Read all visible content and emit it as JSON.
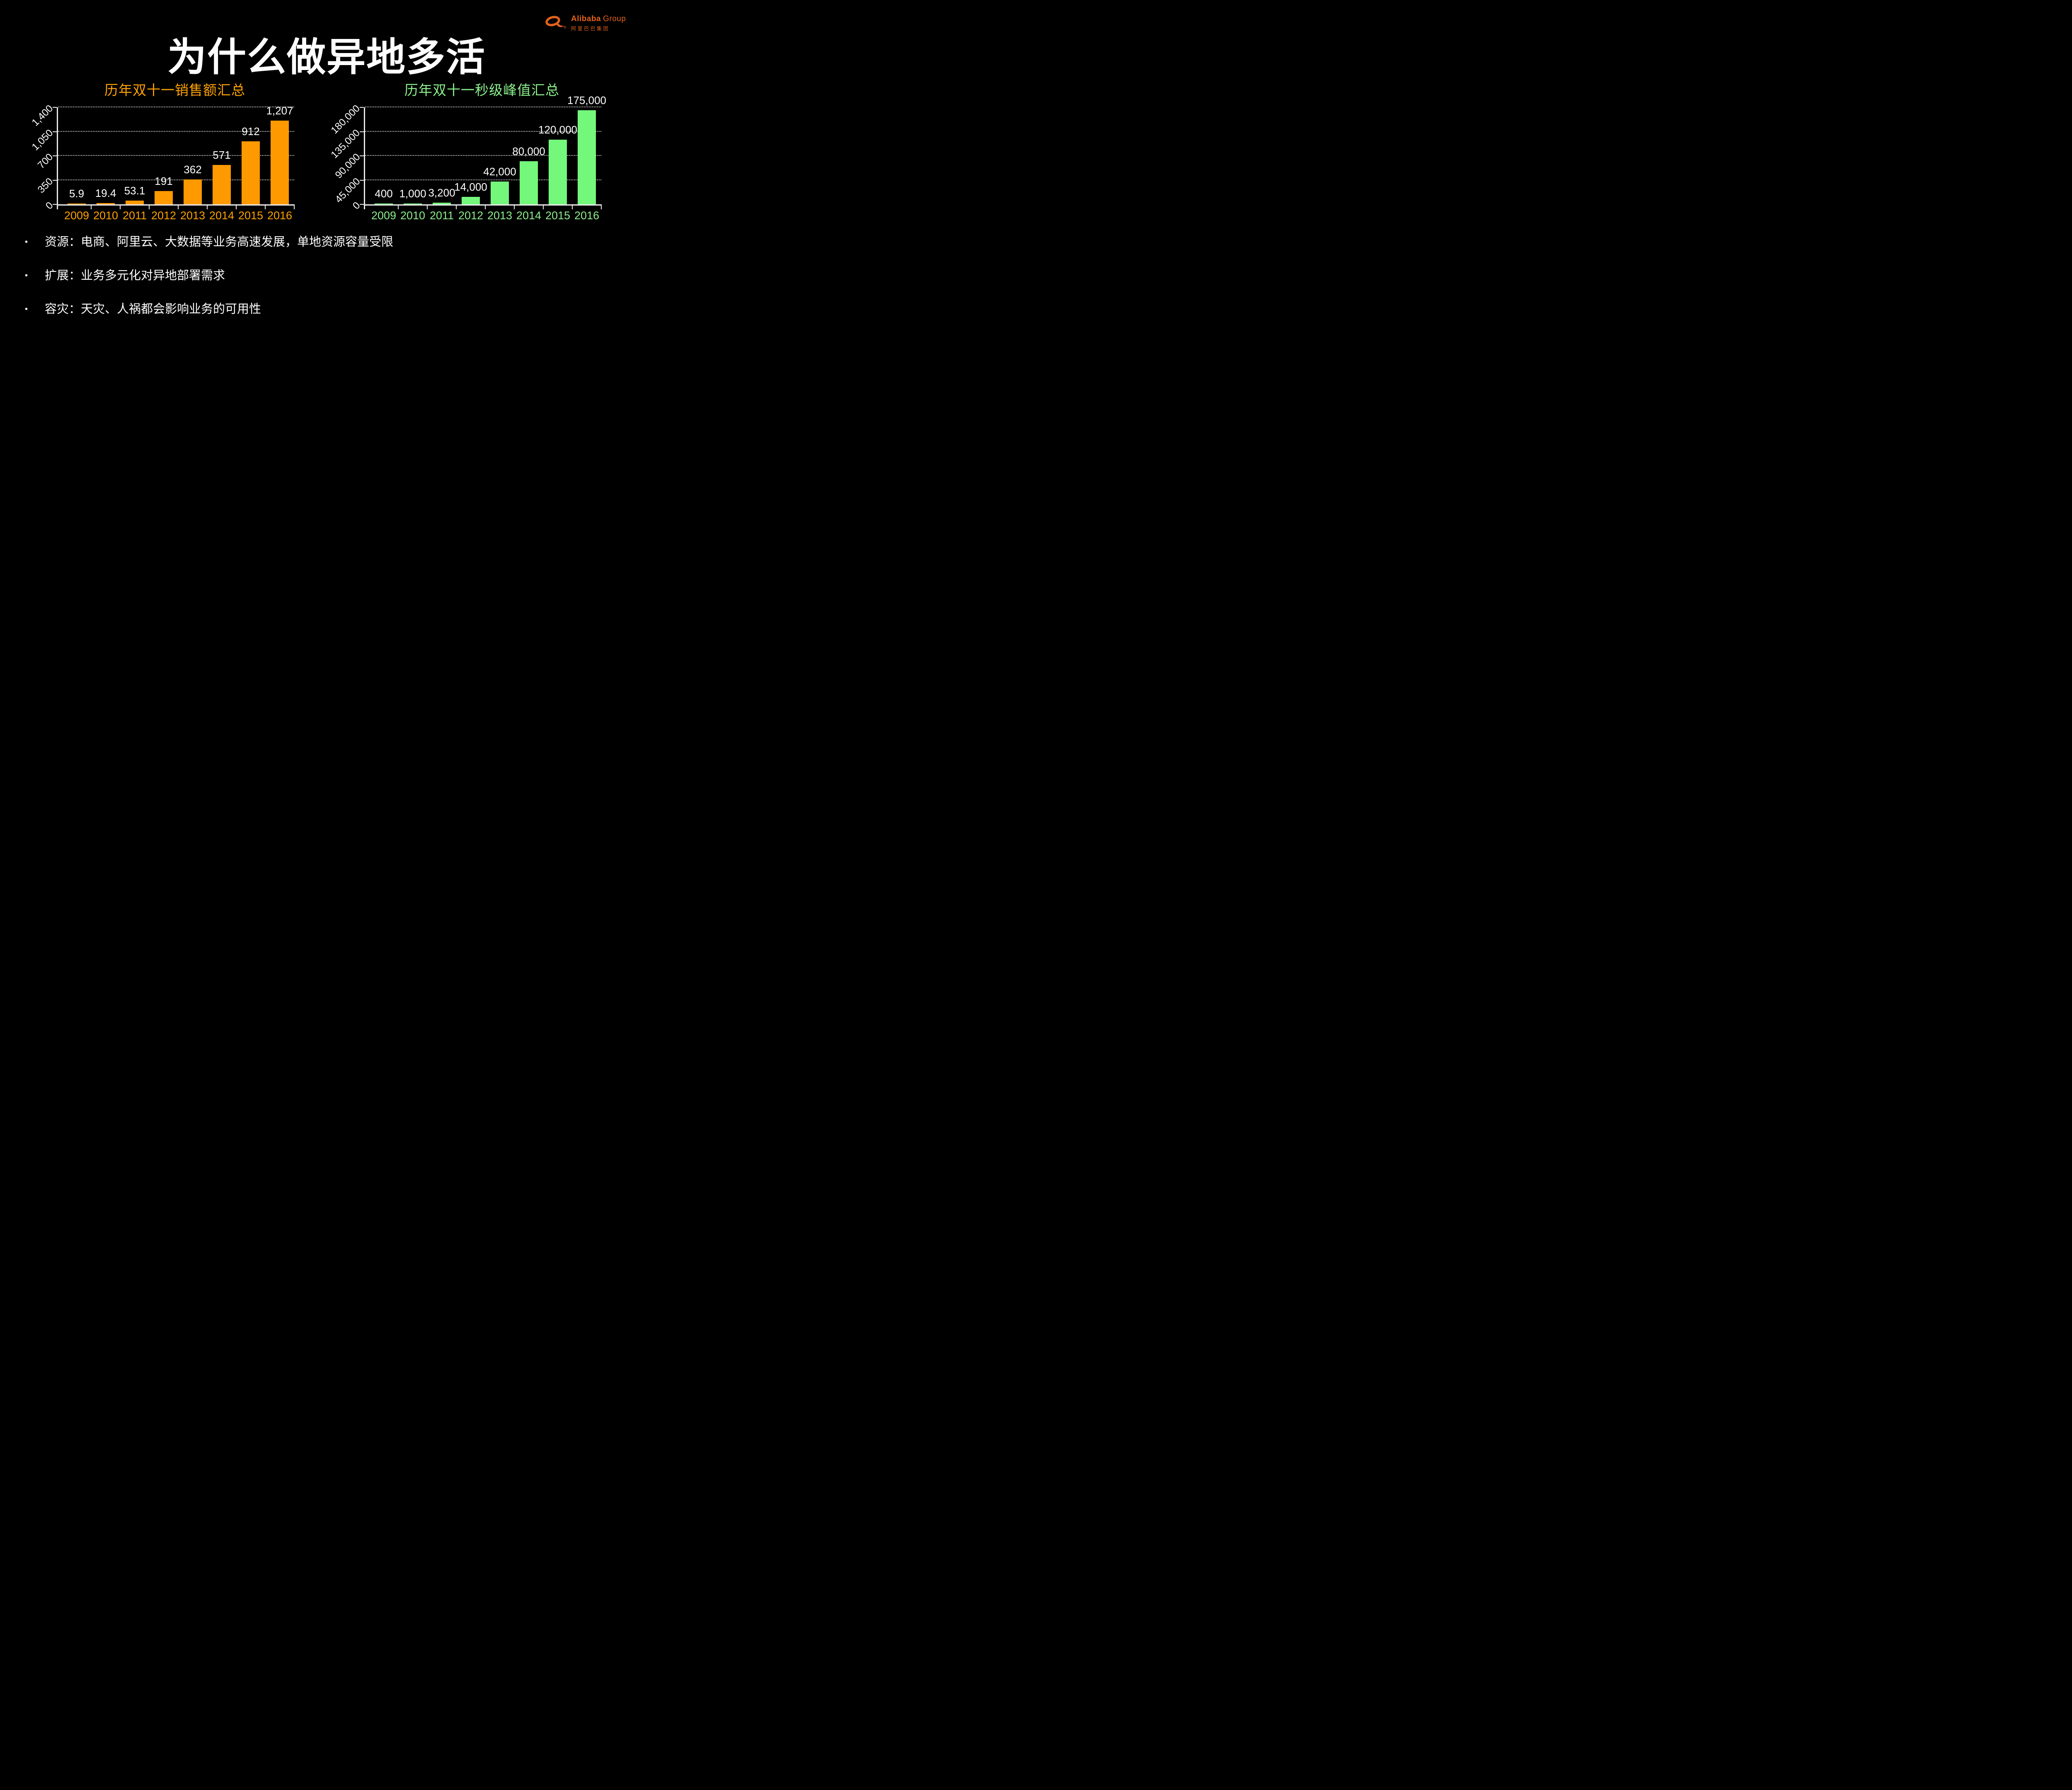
{
  "slide": {
    "title": "为什么做异地多活",
    "logo": {
      "brand": "Alibaba",
      "suffix": "Group",
      "chinese": "阿里巴巴集团",
      "registered": "®",
      "color": "#E2621C"
    },
    "bullets": [
      "资源：电商、阿里云、大数据等业务高速发展，单地资源容量受限",
      "扩展：业务多元化对异地部署需求",
      "容灾：天灾、人祸都会影响业务的可用性"
    ]
  },
  "chart_data": [
    {
      "type": "bar",
      "title": "历年双十一销售额汇总",
      "categories": [
        "2009",
        "2010",
        "2011",
        "2012",
        "2013",
        "2014",
        "2015",
        "2016"
      ],
      "values": [
        5.9,
        19.4,
        53.1,
        191,
        362,
        571,
        912,
        1207
      ],
      "value_labels": [
        "5.9",
        "19.4",
        "53.1",
        "191",
        "362",
        "571",
        "912",
        "1,207"
      ],
      "xlabel": "",
      "ylabel": "",
      "ylim": [
        0,
        1400
      ],
      "yticks": [
        0,
        350,
        700,
        1050,
        1400
      ],
      "ytick_labels": [
        "0",
        "350",
        "700",
        "1,050",
        "1,400"
      ],
      "ytick_rotation": -45,
      "grid": true,
      "legend": "none",
      "bar_color": "#FF9900",
      "text_color": "#FFA200"
    },
    {
      "type": "bar",
      "title": "历年双十一秒级峰值汇总",
      "categories": [
        "2009",
        "2010",
        "2011",
        "2012",
        "2013",
        "2014",
        "2015",
        "2016"
      ],
      "values": [
        400,
        1000,
        3200,
        14000,
        42000,
        80000,
        120000,
        175000
      ],
      "value_labels": [
        "400",
        "1,000",
        "3,200",
        "14,000",
        "42,000",
        "80,000",
        "120,000",
        "175,000"
      ],
      "xlabel": "",
      "ylabel": "",
      "ylim": [
        0,
        180000
      ],
      "yticks": [
        0,
        45000,
        90000,
        135000,
        180000
      ],
      "ytick_labels": [
        "0",
        "45,000",
        "90,000",
        "135,000",
        "180,000"
      ],
      "ytick_rotation": -45,
      "grid": true,
      "legend": "none",
      "bar_color": "#74F87C",
      "text_color": "#8CF08C"
    }
  ]
}
